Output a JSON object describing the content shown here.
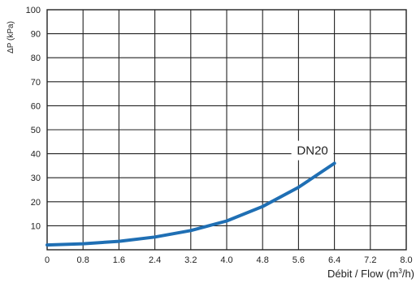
{
  "chart_data": {
    "type": "line",
    "title": "",
    "xlabel_main": "Débit / Flow (m",
    "xlabel_sup": "3",
    "xlabel_end": "/h)",
    "ylabel": "ΔP (kPa)",
    "xlim": [
      0,
      8.0
    ],
    "ylim": [
      0,
      100
    ],
    "grid": true,
    "x_ticks": [
      0,
      0.8,
      1.6,
      2.4,
      3.2,
      4.0,
      4.8,
      5.6,
      6.4,
      7.2,
      8.0
    ],
    "x_tick_labels": [
      "0",
      "0.8",
      "1.6",
      "2.4",
      "3.2",
      "4.0",
      "4.8",
      "5.6",
      "6.4",
      "7.2",
      "8.0"
    ],
    "y_ticks": [
      10,
      20,
      30,
      40,
      50,
      60,
      70,
      80,
      90,
      100
    ],
    "y_tick_labels": [
      "10",
      "20",
      "30",
      "40",
      "50",
      "60",
      "70",
      "80",
      "90",
      "100"
    ],
    "series": [
      {
        "name": "DN20",
        "color": "#1f6fb4",
        "x": [
          0,
          0.8,
          1.6,
          2.4,
          3.2,
          4.0,
          4.8,
          5.6,
          6.4
        ],
        "y": [
          2,
          2.5,
          3.5,
          5.3,
          8,
          12,
          18,
          26,
          36
        ]
      }
    ]
  }
}
